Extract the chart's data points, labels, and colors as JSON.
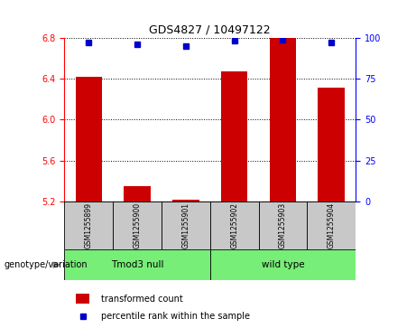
{
  "title": "GDS4827 / 10497122",
  "samples": [
    "GSM1255899",
    "GSM1255900",
    "GSM1255901",
    "GSM1255902",
    "GSM1255903",
    "GSM1255904"
  ],
  "bar_values": [
    6.42,
    5.35,
    5.22,
    6.47,
    6.8,
    6.31
  ],
  "percentile_values": [
    97,
    96,
    95,
    98,
    99,
    97
  ],
  "bar_color": "#cc0000",
  "dot_color": "#0000cc",
  "ylim_left": [
    5.2,
    6.8
  ],
  "ylim_right": [
    0,
    100
  ],
  "yticks_left": [
    5.2,
    5.6,
    6.0,
    6.4,
    6.8
  ],
  "yticks_right": [
    0,
    25,
    50,
    75,
    100
  ],
  "genotype_label": "genotype/variation",
  "legend_items": [
    {
      "label": "transformed count",
      "color": "#cc0000"
    },
    {
      "label": "percentile rank within the sample",
      "color": "#0000cc"
    }
  ],
  "background_samples": "#c8c8c8",
  "group_color": "#77ee77",
  "bar_bottom": 5.2,
  "group_data": [
    {
      "label": "Tmod3 null",
      "start": 0,
      "end": 2
    },
    {
      "label": "wild type",
      "start": 3,
      "end": 5
    }
  ]
}
